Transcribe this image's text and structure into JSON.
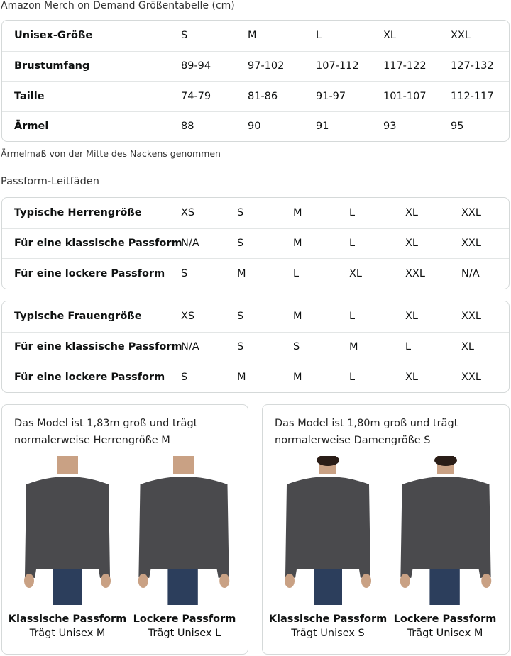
{
  "size_chart": {
    "title": "Amazon Merch on Demand Größentabelle (cm)",
    "rows": [
      {
        "label": "Unisex-Größe",
        "values": [
          "S",
          "M",
          "L",
          "XL",
          "XXL"
        ]
      },
      {
        "label": "Brustumfang",
        "values": [
          "89-94",
          "97-102",
          "107-112",
          "117-122",
          "127-132"
        ]
      },
      {
        "label": "Taille",
        "values": [
          "74-79",
          "81-86",
          "91-97",
          "101-107",
          "112-117"
        ]
      },
      {
        "label": "Ärmel",
        "values": [
          "88",
          "90",
          "91",
          "93",
          "95"
        ]
      }
    ],
    "note": "Ärmelmaß von der Mitte des Nackens genommen"
  },
  "fit_guides": {
    "title": "Passform-Leitfäden",
    "men": [
      {
        "label": "Typische Herrengröße",
        "values": [
          "XS",
          "S",
          "M",
          "L",
          "XL",
          "XXL"
        ]
      },
      {
        "label": "Für eine klassische Passform",
        "values": [
          "N/A",
          "S",
          "M",
          "L",
          "XL",
          "XXL"
        ]
      },
      {
        "label": "Für eine lockere Passform",
        "values": [
          "S",
          "M",
          "L",
          "XL",
          "XXL",
          "N/A"
        ]
      }
    ],
    "women": [
      {
        "label": "Typische Frauengröße",
        "values": [
          "XS",
          "S",
          "M",
          "L",
          "XL",
          "XXL"
        ]
      },
      {
        "label": "Für eine klassische Passform",
        "values": [
          "N/A",
          "S",
          "S",
          "M",
          "L",
          "XL"
        ]
      },
      {
        "label": "Für eine lockere Passform",
        "values": [
          "S",
          "M",
          "M",
          "L",
          "XL",
          "XXL"
        ]
      }
    ]
  },
  "models": [
    {
      "caption": "Das Model ist 1,83m groß und trägt normalerweise Herrengröße M",
      "fits": [
        {
          "name": "Klassische Passform",
          "wears": "Trägt Unisex M"
        },
        {
          "name": "Lockere Passform",
          "wears": "Trägt Unisex L"
        }
      ]
    },
    {
      "caption": "Das Model ist 1,80m groß und trägt normalerweise Damengröße S",
      "fits": [
        {
          "name": "Klassische Passform",
          "wears": "Trägt Unisex S"
        },
        {
          "name": "Lockere Passform",
          "wears": "Trägt Unisex M"
        }
      ]
    }
  ],
  "colors": {
    "shirt": "#4a4a4d",
    "jeans": "#2c3e5c",
    "skin": "#c9a184",
    "border": "#d5d9d9"
  }
}
